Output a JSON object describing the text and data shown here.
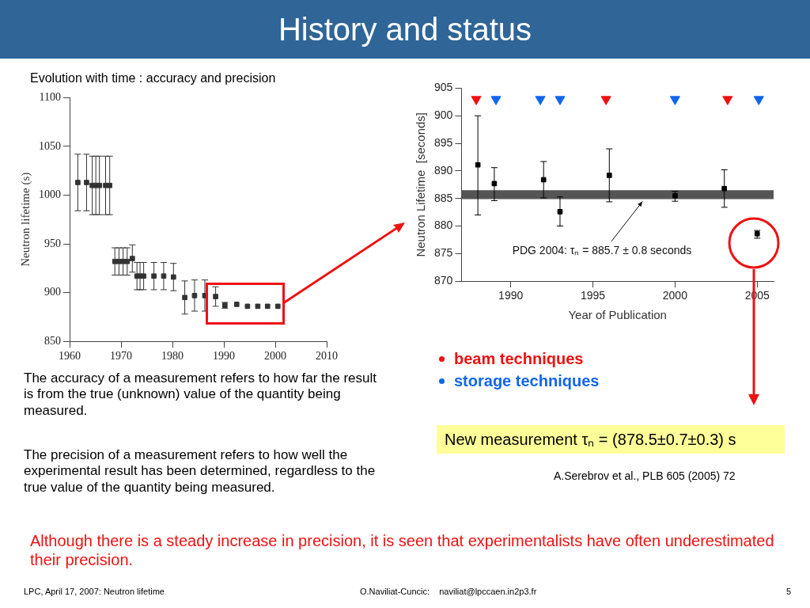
{
  "chart_data": [
    {
      "type": "scatter",
      "title": "Evolution with time : accuracy and precision",
      "ylabel": "Neutron lifetime (s)",
      "xlim": [
        1960,
        2010
      ],
      "xticks": [
        1960,
        1970,
        1980,
        1990,
        2000,
        2010
      ],
      "ylim": [
        850,
        1100
      ],
      "yticks": [
        850,
        900,
        950,
        1000,
        1050,
        1100
      ],
      "marker": "square",
      "legend": false,
      "series": [
        {
          "color": "#333333",
          "x": [
            1961.6,
            1963.3,
            1964.4,
            1965.1,
            1965.8,
            1967.0,
            1967.8,
            1968.8,
            1969.6,
            1970.4,
            1971.2,
            1972.2,
            1973.1,
            1973.7,
            1974.4,
            1976.4,
            1978.3,
            1980.2,
            1982.4,
            1984.3,
            1986.3,
            1988.4,
            1990.2,
            1992.5,
            1994.6,
            1996.6,
            1998.5,
            2000.5
          ],
          "values": [
            1013,
            1013,
            1010,
            1010,
            1010,
            1010,
            1010,
            932,
            932,
            932,
            932,
            935,
            917,
            917,
            917,
            917,
            917,
            916,
            895,
            897,
            897,
            896,
            887,
            888,
            886,
            886,
            886,
            886
          ],
          "errors": [
            29,
            29,
            30,
            30,
            30,
            30,
            30,
            14,
            14,
            14,
            14,
            14,
            14,
            14,
            14,
            14,
            14,
            14,
            17,
            16,
            16,
            10,
            3,
            null,
            null,
            null,
            null,
            null
          ]
        }
      ]
    },
    {
      "type": "scatter",
      "xlabel": "Year of Publication",
      "ylabel": "Neutron Lifetime  [seconds]",
      "xlim": [
        1987,
        2006
      ],
      "xticks": [
        1990,
        1995,
        2000,
        2005
      ],
      "ylim": [
        870,
        905
      ],
      "yticks": [
        870,
        875,
        880,
        885,
        890,
        895,
        900,
        905
      ],
      "marker": "square",
      "legend": "bottom",
      "bands": [
        {
          "axis": "y",
          "from": 884.9,
          "to": 886.5,
          "label": "PDG 2004: τₙ = 885.7 ± 0.8 seconds",
          "color": "#555555"
        }
      ],
      "annotations": [
        "New measurement τₙ = (878.5±0.7±0.3) s",
        "A.Serebrov et al., PLB 605 (2005) 72"
      ],
      "series": [
        {
          "color": "#000000",
          "x": [
            1988.0,
            1989.0,
            1992.0,
            1993.0,
            1996.0,
            2000.0,
            2003.0,
            2005.0
          ],
          "values": [
            891.1,
            887.7,
            888.4,
            882.6,
            889.2,
            885.5,
            886.8,
            878.6
          ],
          "errors": [
            [
              882,
              900
            ],
            [
              884.6,
              890.6
            ],
            [
              885.1,
              891.7
            ],
            [
              880,
              885.3
            ],
            [
              884.4,
              894
            ],
            [
              884.5,
              886.3
            ],
            [
              883.4,
              890.2
            ],
            [
              877.8,
              879.2
            ]
          ]
        },
        {
          "name": "beam techniques",
          "color": "#ee1111",
          "marker": "triangle",
          "x": [
            1987.9,
            1995.8,
            2003.2
          ],
          "values": [
            903,
            903,
            903
          ]
        },
        {
          "name": "storage techniques",
          "color": "#1166ee",
          "marker": "triangle",
          "x": [
            1989.1,
            1991.8,
            1993.0,
            2000.0,
            2005.1
          ],
          "values": [
            903,
            903,
            903,
            903,
            903
          ]
        }
      ]
    },
    {
      "type": "other",
      "title": "History and status",
      "annotations": [
        "The accuracy of a measurement refers to how far the result is from the true (unknown) value of the quantity being measured.",
        "The precision of a measurement refers to how well the experimental result has been determined, regardless to the true value of the quantity being measured.",
        "Although there is a steady increase in precision, it is seen that experimentalists have often underestimated their precision.",
        "LPC, April 17, 2007: Neutron lifetime",
        "O.Naviliat-Cuncic:    naviliat@lpccaen.in2p3.fr",
        "5"
      ]
    }
  ]
}
